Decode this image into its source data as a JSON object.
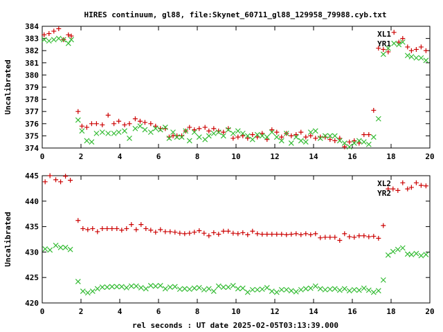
{
  "title": "HIRES continuum, gl88, file:Skynet_60711_gl88_129958_79988.cyb.txt",
  "xlabel": "rel seconds : UT date 2025-02-05T03:13:39.000",
  "colors": {
    "red": "#cc0000",
    "green": "#33bb33"
  },
  "chart_data": [
    {
      "type": "scatter",
      "ylabel": "Uncalibrated",
      "xlim": [
        0,
        20
      ],
      "ylim": [
        374,
        384
      ],
      "xticks": [
        0,
        2,
        4,
        6,
        8,
        10,
        12,
        14,
        16,
        18,
        20
      ],
      "yticks": [
        374,
        375,
        376,
        377,
        378,
        379,
        380,
        381,
        382,
        383,
        384
      ],
      "legend_position": "top-right",
      "series": [
        {
          "name": "XL1",
          "marker": "plus",
          "color": "#cc0000",
          "x": [
            0.1,
            0.35,
            0.6,
            0.85,
            1.1,
            1.35,
            1.5,
            1.85,
            2.05,
            2.3,
            2.55,
            2.8,
            3.1,
            3.4,
            3.7,
            3.95,
            4.25,
            4.5,
            4.8,
            5.05,
            5.3,
            5.6,
            5.85,
            6.1,
            6.35,
            6.55,
            6.75,
            6.95,
            7.2,
            7.4,
            7.6,
            7.85,
            8.1,
            8.4,
            8.6,
            8.85,
            9.1,
            9.35,
            9.6,
            9.85,
            10.1,
            10.35,
            10.6,
            10.85,
            11.1,
            11.35,
            11.6,
            11.85,
            12.1,
            12.35,
            12.6,
            12.85,
            13.1,
            13.35,
            13.6,
            13.85,
            14.1,
            14.35,
            14.6,
            14.85,
            15.1,
            15.35,
            15.6,
            15.85,
            16.1,
            16.35,
            16.6,
            16.85,
            17.1,
            17.35,
            17.6,
            17.85,
            18.15,
            18.4,
            18.6,
            18.85,
            19.05,
            19.3,
            19.55,
            19.8
          ],
          "y": [
            383.3,
            383.4,
            383.6,
            383.8,
            382.9,
            383.3,
            383.2,
            377.0,
            375.8,
            375.7,
            376.0,
            376.0,
            375.9,
            376.7,
            376.0,
            376.2,
            375.9,
            376.0,
            376.4,
            376.2,
            376.1,
            376.0,
            375.8,
            375.6,
            375.6,
            374.9,
            375.0,
            375.0,
            375.0,
            375.4,
            375.7,
            375.5,
            375.6,
            375.7,
            375.4,
            375.6,
            375.4,
            375.3,
            375.6,
            374.8,
            374.9,
            375.0,
            374.8,
            375.1,
            374.9,
            375.2,
            374.7,
            375.5,
            375.3,
            374.9,
            375.2,
            375.0,
            375.1,
            375.3,
            374.9,
            375.0,
            374.8,
            374.9,
            374.9,
            374.7,
            374.6,
            374.8,
            374.1,
            374.5,
            374.6,
            374.4,
            375.1,
            375.1,
            377.1,
            382.2,
            382.1,
            381.9,
            383.5,
            382.7,
            383.0,
            382.3,
            382.0,
            382.1,
            382.3,
            382.0
          ],
          "x_fix": true
        },
        {
          "name": "YR1",
          "marker": "cross",
          "color": "#33bb33",
          "x": [
            0.1,
            0.35,
            0.6,
            0.85,
            1.1,
            1.35,
            1.5,
            1.85,
            2.05,
            2.3,
            2.55,
            2.8,
            3.1,
            3.4,
            3.7,
            3.95,
            4.25,
            4.5,
            4.8,
            5.05,
            5.3,
            5.6,
            5.85,
            6.1,
            6.35,
            6.55,
            6.75,
            6.95,
            7.2,
            7.4,
            7.6,
            7.85,
            8.1,
            8.4,
            8.6,
            8.85,
            9.1,
            9.35,
            9.6,
            9.85,
            10.1,
            10.35,
            10.6,
            10.85,
            11.1,
            11.35,
            11.6,
            11.85,
            12.1,
            12.35,
            12.6,
            12.85,
            13.1,
            13.35,
            13.6,
            13.85,
            14.1,
            14.35,
            14.6,
            14.85,
            15.1,
            15.35,
            15.6,
            15.85,
            16.1,
            16.35,
            16.6,
            16.85,
            17.1,
            17.35,
            17.6,
            17.85,
            18.15,
            18.4,
            18.6,
            18.85,
            19.05,
            19.3,
            19.55,
            19.8
          ],
          "y": [
            382.9,
            382.8,
            382.9,
            383.0,
            382.9,
            382.6,
            382.9,
            376.3,
            375.4,
            374.6,
            374.5,
            375.2,
            375.3,
            375.2,
            375.2,
            375.3,
            375.4,
            374.8,
            375.6,
            375.8,
            375.5,
            375.3,
            375.6,
            375.5,
            375.7,
            374.8,
            375.3,
            374.9,
            374.9,
            375.4,
            374.6,
            375.3,
            374.9,
            374.7,
            375.0,
            375.2,
            375.3,
            375.0,
            375.5,
            375.2,
            375.4,
            375.2,
            375.0,
            374.7,
            375.1,
            375.0,
            374.9,
            375.3,
            374.9,
            374.6,
            375.2,
            374.4,
            374.9,
            374.6,
            374.5,
            375.3,
            375.4,
            374.8,
            375.0,
            375.0,
            375.0,
            374.6,
            374.4,
            374.1,
            374.4,
            374.6,
            374.5,
            374.3,
            374.9,
            376.4,
            381.7,
            382.2,
            382.6,
            382.5,
            382.7,
            381.6,
            381.5,
            381.4,
            381.4,
            381.2
          ],
          "x_fix": true
        }
      ]
    },
    {
      "type": "scatter",
      "ylabel": "Uncalibrated",
      "xlim": [
        0,
        20
      ],
      "ylim": [
        420,
        445
      ],
      "xticks": [
        0,
        2,
        4,
        6,
        8,
        10,
        12,
        14,
        16,
        18,
        20
      ],
      "yticks": [
        420,
        425,
        430,
        435,
        440,
        445
      ],
      "legend_position": "top-right",
      "series": [
        {
          "name": "XL2",
          "marker": "plus",
          "color": "#cc0000",
          "x": [
            0.15,
            0.4,
            0.7,
            0.95,
            1.2,
            1.45,
            1.85,
            2.1,
            2.35,
            2.6,
            2.85,
            3.1,
            3.35,
            3.6,
            3.85,
            4.1,
            4.35,
            4.6,
            4.85,
            5.1,
            5.35,
            5.6,
            5.85,
            6.1,
            6.35,
            6.6,
            6.85,
            7.1,
            7.35,
            7.6,
            7.85,
            8.1,
            8.35,
            8.6,
            8.85,
            9.1,
            9.35,
            9.6,
            9.85,
            10.1,
            10.35,
            10.6,
            10.85,
            11.1,
            11.35,
            11.6,
            11.85,
            12.1,
            12.35,
            12.6,
            12.85,
            13.1,
            13.35,
            13.6,
            13.85,
            14.1,
            14.35,
            14.6,
            14.85,
            15.1,
            15.35,
            15.6,
            15.85,
            16.1,
            16.35,
            16.6,
            16.85,
            17.1,
            17.35,
            17.6,
            17.85,
            18.1,
            18.35,
            18.6,
            18.85,
            19.05,
            19.3,
            19.55,
            19.8
          ],
          "y": [
            443.8,
            445.0,
            444.2,
            443.8,
            444.9,
            444.1,
            436.2,
            434.6,
            434.4,
            434.6,
            434.0,
            434.6,
            434.6,
            434.6,
            434.6,
            434.3,
            434.6,
            435.4,
            434.4,
            435.4,
            434.6,
            434.3,
            433.9,
            434.4,
            434.0,
            434.0,
            433.9,
            433.7,
            433.6,
            433.7,
            433.9,
            434.2,
            433.7,
            433.2,
            433.8,
            433.5,
            434.1,
            434.1,
            433.7,
            433.6,
            433.8,
            433.4,
            434.1,
            433.6,
            433.5,
            433.5,
            433.5,
            433.5,
            433.5,
            433.4,
            433.5,
            433.6,
            433.4,
            433.6,
            433.4,
            433.6,
            432.8,
            432.9,
            432.9,
            432.9,
            432.3,
            433.6,
            433.0,
            432.9,
            433.2,
            433.2,
            433.0,
            433.1,
            432.7,
            435.2,
            442.4,
            442.4,
            442.1,
            443.6,
            442.4,
            442.7,
            443.6,
            443.1,
            443.0
          ],
          "x_fix": true
        },
        {
          "name": "YR2",
          "marker": "cross",
          "color": "#33bb33",
          "x": [
            0.15,
            0.4,
            0.7,
            0.95,
            1.2,
            1.45,
            1.85,
            2.1,
            2.35,
            2.6,
            2.85,
            3.1,
            3.35,
            3.6,
            3.85,
            4.1,
            4.35,
            4.6,
            4.85,
            5.1,
            5.35,
            5.6,
            5.85,
            6.1,
            6.35,
            6.6,
            6.85,
            7.1,
            7.35,
            7.6,
            7.85,
            8.1,
            8.35,
            8.6,
            8.85,
            9.1,
            9.35,
            9.6,
            9.85,
            10.1,
            10.35,
            10.6,
            10.85,
            11.1,
            11.35,
            11.6,
            11.85,
            12.1,
            12.35,
            12.6,
            12.85,
            13.1,
            13.35,
            13.6,
            13.85,
            14.1,
            14.35,
            14.6,
            14.85,
            15.1,
            15.35,
            15.6,
            15.85,
            16.1,
            16.35,
            16.6,
            16.85,
            17.1,
            17.35,
            17.6,
            17.85,
            18.1,
            18.35,
            18.6,
            18.85,
            19.05,
            19.3,
            19.55,
            19.8
          ],
          "y": [
            430.6,
            430.4,
            431.3,
            430.9,
            430.9,
            430.5,
            424.2,
            422.3,
            422.0,
            422.3,
            422.8,
            423.1,
            423.1,
            423.2,
            423.2,
            423.2,
            423.0,
            423.3,
            423.3,
            423.0,
            422.8,
            423.4,
            423.3,
            423.4,
            422.8,
            423.1,
            423.2,
            422.7,
            422.8,
            422.7,
            422.9,
            423.0,
            422.6,
            422.8,
            422.3,
            423.3,
            423.1,
            423.1,
            423.4,
            422.8,
            422.9,
            422.1,
            422.6,
            422.6,
            422.7,
            423.0,
            422.3,
            422.1,
            422.6,
            422.6,
            422.4,
            422.2,
            422.6,
            422.8,
            422.9,
            423.3,
            422.8,
            422.6,
            422.7,
            422.8,
            422.5,
            422.8,
            422.4,
            422.6,
            422.5,
            422.9,
            422.5,
            422.1,
            422.4,
            424.5,
            429.4,
            430.1,
            430.5,
            430.8,
            429.6,
            429.5,
            429.7,
            429.3,
            429.5
          ],
          "x_fix": true
        }
      ]
    }
  ]
}
